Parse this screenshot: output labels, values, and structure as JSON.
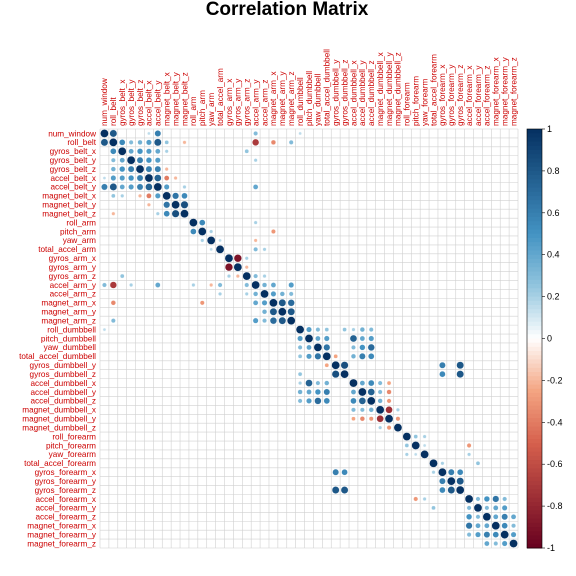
{
  "chart_data": {
    "type": "heatmap",
    "subtype": "correlation-circles",
    "title": "Correlation Matrix",
    "variables": [
      "num_window",
      "roll_belt",
      "gyros_belt_x",
      "gyros_belt_y",
      "gyros_belt_z",
      "accel_belt_x",
      "accel_belt_y",
      "magnet_belt_x",
      "magnet_belt_y",
      "magnet_belt_z",
      "roll_arm",
      "pitch_arm",
      "yaw_arm",
      "total_accel_arm",
      "gyros_arm_x",
      "gyros_arm_y",
      "gyros_arm_z",
      "accel_arm_y",
      "accel_arm_z",
      "magnet_arm_x",
      "magnet_arm_y",
      "magnet_arm_z",
      "roll_dumbbell",
      "pitch_dumbbell",
      "yaw_dumbbell",
      "total_accel_dumbbell",
      "gyros_dumbbell_y",
      "gyros_dumbbell_z",
      "accel_dumbbell_x",
      "accel_dumbbell_y",
      "accel_dumbbell_z",
      "magnet_dumbbell_x",
      "magnet_dumbbell_y",
      "magnet_dumbbell_z",
      "roll_forearm",
      "pitch_forearm",
      "yaw_forearm",
      "total_accel_forearm",
      "gyros_forearm_x",
      "gyros_forearm_y",
      "gyros_forearm_z",
      "accel_forearm_x",
      "accel_forearm_y",
      "accel_forearm_z",
      "magnet_forearm_x",
      "magnet_forearm_y",
      "magnet_forearm_z"
    ],
    "correlations": [
      [
        0,
        1,
        0.8
      ],
      [
        0,
        5,
        0.15
      ],
      [
        0,
        6,
        0.6
      ],
      [
        0,
        17,
        0.3
      ],
      [
        0,
        22,
        0.15
      ],
      [
        1,
        2,
        0.55
      ],
      [
        1,
        3,
        0.3
      ],
      [
        1,
        4,
        0.35
      ],
      [
        1,
        5,
        0.45
      ],
      [
        1,
        6,
        0.8
      ],
      [
        1,
        7,
        0.25
      ],
      [
        1,
        9,
        -0.2
      ],
      [
        1,
        17,
        -0.7
      ],
      [
        1,
        19,
        -0.35
      ],
      [
        1,
        21,
        0.3
      ],
      [
        2,
        3,
        0.4
      ],
      [
        2,
        4,
        0.5
      ],
      [
        2,
        5,
        0.45
      ],
      [
        2,
        6,
        0.4
      ],
      [
        2,
        7,
        0.2
      ],
      [
        2,
        16,
        0.25
      ],
      [
        3,
        4,
        0.6
      ],
      [
        3,
        5,
        0.5
      ],
      [
        3,
        6,
        0.45
      ],
      [
        3,
        17,
        0.2
      ],
      [
        4,
        5,
        0.6
      ],
      [
        4,
        6,
        0.6
      ],
      [
        4,
        7,
        -0.2
      ],
      [
        5,
        6,
        0.75
      ],
      [
        5,
        7,
        -0.4
      ],
      [
        5,
        8,
        -0.2
      ],
      [
        6,
        7,
        0.45
      ],
      [
        6,
        9,
        0.2
      ],
      [
        6,
        17,
        0.4
      ],
      [
        7,
        8,
        0.65
      ],
      [
        7,
        9,
        0.55
      ],
      [
        8,
        9,
        0.85
      ],
      [
        10,
        11,
        0.55
      ],
      [
        10,
        17,
        0.2
      ],
      [
        11,
        12,
        0.2
      ],
      [
        11,
        19,
        -0.3
      ],
      [
        12,
        13,
        0.15
      ],
      [
        12,
        17,
        -0.2
      ],
      [
        13,
        17,
        0.3
      ],
      [
        13,
        18,
        0.2
      ],
      [
        14,
        15,
        -0.9
      ],
      [
        14,
        16,
        0.2
      ],
      [
        15,
        16,
        -0.2
      ],
      [
        16,
        17,
        0.3
      ],
      [
        16,
        18,
        0.2
      ],
      [
        17,
        18,
        0.35
      ],
      [
        17,
        19,
        0.4
      ],
      [
        17,
        21,
        0.45
      ],
      [
        18,
        19,
        0.45
      ],
      [
        18,
        20,
        0.35
      ],
      [
        18,
        21,
        0.3
      ],
      [
        19,
        20,
        0.8
      ],
      [
        19,
        21,
        0.7
      ],
      [
        20,
        21,
        0.8
      ],
      [
        22,
        23,
        0.45
      ],
      [
        22,
        24,
        0.3
      ],
      [
        22,
        25,
        0.25
      ],
      [
        22,
        27,
        0.25
      ],
      [
        22,
        28,
        0.2
      ],
      [
        22,
        29,
        0.35
      ],
      [
        22,
        30,
        0.3
      ],
      [
        23,
        24,
        0.4
      ],
      [
        23,
        25,
        0.45
      ],
      [
        23,
        28,
        0.75
      ],
      [
        23,
        29,
        0.4
      ],
      [
        23,
        30,
        0.45
      ],
      [
        24,
        25,
        0.65
      ],
      [
        24,
        28,
        0.3
      ],
      [
        24,
        29,
        0.5
      ],
      [
        24,
        30,
        0.7
      ],
      [
        25,
        26,
        -0.25
      ],
      [
        25,
        28,
        0.35
      ],
      [
        25,
        29,
        0.6
      ],
      [
        25,
        30,
        0.55
      ],
      [
        26,
        27,
        0.85
      ],
      [
        26,
        38,
        0.6
      ],
      [
        26,
        40,
        0.8
      ],
      [
        27,
        38,
        0.55
      ],
      [
        27,
        40,
        0.8
      ],
      [
        28,
        29,
        0.4
      ],
      [
        28,
        30,
        0.55
      ],
      [
        28,
        31,
        0.3
      ],
      [
        28,
        32,
        -0.25
      ],
      [
        29,
        30,
        0.75
      ],
      [
        29,
        31,
        0.3
      ],
      [
        29,
        32,
        -0.35
      ],
      [
        30,
        31,
        0.35
      ],
      [
        30,
        32,
        -0.3
      ],
      [
        31,
        32,
        -0.75
      ],
      [
        31,
        33,
        0.2
      ],
      [
        32,
        33,
        -0.3
      ],
      [
        34,
        35,
        0.25
      ],
      [
        34,
        36,
        0.2
      ],
      [
        35,
        36,
        0.15
      ],
      [
        35,
        41,
        -0.3
      ],
      [
        36,
        41,
        0.2
      ],
      [
        37,
        38,
        0.2
      ],
      [
        37,
        42,
        0.25
      ],
      [
        38,
        39,
        0.6
      ],
      [
        38,
        40,
        0.55
      ],
      [
        39,
        40,
        0.8
      ],
      [
        41,
        42,
        0.3
      ],
      [
        41,
        43,
        0.5
      ],
      [
        41,
        44,
        0.65
      ],
      [
        41,
        45,
        0.3
      ],
      [
        42,
        43,
        0.3
      ],
      [
        42,
        44,
        0.4
      ],
      [
        42,
        45,
        0.45
      ],
      [
        43,
        44,
        0.4
      ],
      [
        43,
        45,
        0.6
      ],
      [
        43,
        46,
        0.4
      ],
      [
        44,
        45,
        0.55
      ],
      [
        44,
        46,
        0.3
      ],
      [
        45,
        46,
        0.45
      ]
    ],
    "diagonal": 1,
    "colorbar": {
      "ticks": [
        1,
        0.8,
        0.6,
        0.4,
        0.2,
        0,
        -0.2,
        -0.4,
        -0.6,
        -0.8,
        -1
      ],
      "range": [
        -1,
        1
      ]
    },
    "colors": {
      "neg": "#67001F",
      "negMid": "#D6604D",
      "zero": "#FFFFFF",
      "posMid": "#4393C3",
      "pos": "#053061",
      "grid": "#d0d0d0",
      "label": "#cc0000"
    },
    "xlabel": "",
    "ylabel": ""
  }
}
